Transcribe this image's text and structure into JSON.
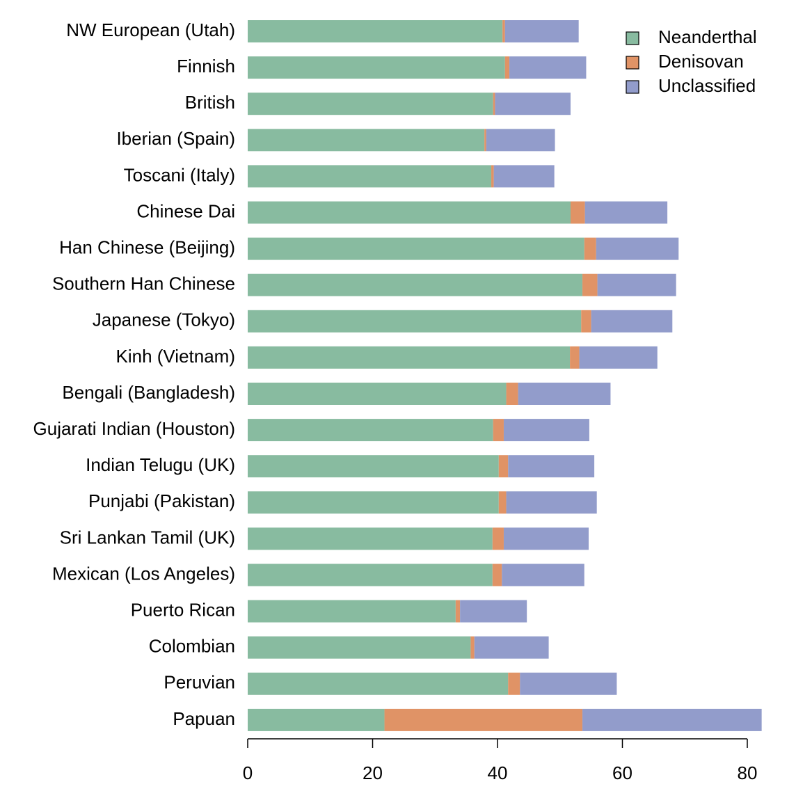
{
  "chart_data": {
    "type": "stacked-barh",
    "categories": [
      "NW European (Utah)",
      "Finnish",
      "British",
      "Iberian (Spain)",
      "Toscani (Italy)",
      "Chinese Dai",
      "Han Chinese (Beijing)",
      "Southern Han Chinese",
      "Japanese (Tokyo)",
      "Kinh (Vietnam)",
      "Bengali (Bangladesh)",
      "Gujarati Indian (Houston)",
      "Indian Telugu (UK)",
      "Punjabi (Pakistan)",
      "Sri Lankan Tamil (UK)",
      "Mexican (Los Angeles)",
      "Puerto Rican",
      "Colombian",
      "Peruvian",
      "Papuan"
    ],
    "series": [
      {
        "name": "Neanderthal",
        "color": "#88bba0",
        "values": [
          40.8,
          41.2,
          39.3,
          37.9,
          39.0,
          51.7,
          53.9,
          53.6,
          53.4,
          51.6,
          41.4,
          39.3,
          40.2,
          40.2,
          39.2,
          39.2,
          33.3,
          35.7,
          41.7,
          21.9
        ]
      },
      {
        "name": "Denisovan",
        "color": "#e09366",
        "values": [
          0.4,
          0.7,
          0.3,
          0.3,
          0.4,
          2.3,
          1.9,
          2.4,
          1.6,
          1.5,
          1.9,
          1.7,
          1.5,
          1.2,
          1.8,
          1.5,
          0.7,
          0.6,
          1.9,
          31.7
        ]
      },
      {
        "name": "Unclassified",
        "color": "#929ccb",
        "values": [
          11.8,
          12.3,
          12.1,
          11.0,
          9.7,
          13.2,
          13.2,
          12.6,
          13.0,
          12.5,
          14.8,
          13.7,
          13.8,
          14.5,
          13.6,
          13.2,
          10.7,
          11.9,
          15.5,
          28.7
        ]
      }
    ],
    "xlim": [
      0,
      80
    ],
    "xticks": [
      0,
      20,
      40,
      60,
      80
    ],
    "legend": "top-right"
  }
}
